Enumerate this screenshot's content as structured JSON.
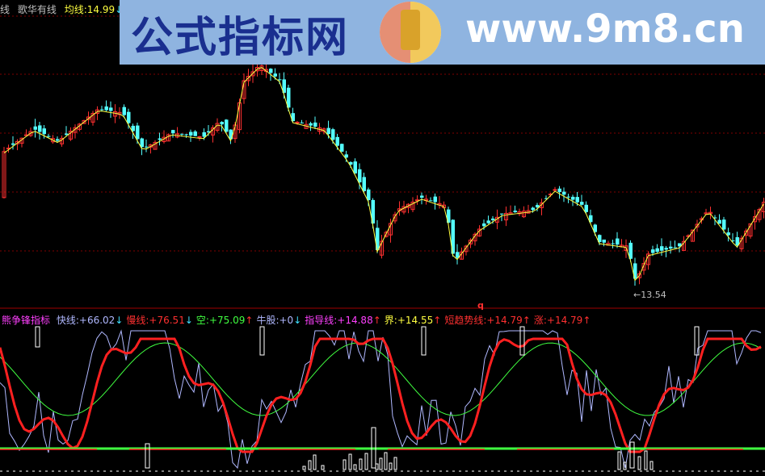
{
  "main_legend": {
    "prefix": "线",
    "name": "歌华有线",
    "ma_label": "均线:",
    "ma_value": "14.99",
    "ma_arrow": "↓"
  },
  "watermark": {
    "site_name": "公式指标网",
    "url": "www.9m8.cn",
    "logo_text": "9m8.cn"
  },
  "chart": {
    "low_label": "←13.54",
    "marker": "q"
  },
  "indicator": {
    "name": "熊争锋指标",
    "items": [
      {
        "label": "快线:",
        "value": "+66.02",
        "arrow": "↓",
        "color": "#b0b8ff",
        "arrow_color": "#40e0ff"
      },
      {
        "label": "慢线:",
        "value": "+76.51",
        "arrow": "↓",
        "color": "#ff3030",
        "arrow_color": "#40e0ff"
      },
      {
        "label": "空:",
        "value": "+75.09",
        "arrow": "↑",
        "color": "#40ff40",
        "arrow_color": "#ff3030"
      },
      {
        "label": "牛股:",
        "value": "+0",
        "arrow": "↓",
        "color": "#b0b8ff",
        "arrow_color": "#40e0ff"
      },
      {
        "label": "指导线:",
        "value": "+14.88",
        "arrow": "↑",
        "color": "#ff40ff",
        "arrow_color": "#ff3030"
      },
      {
        "label": "界:",
        "value": "+14.55",
        "arrow": "↑",
        "color": "#ffff40",
        "arrow_color": "#ff3030"
      },
      {
        "label": "短趋势线:",
        "value": "+14.79",
        "arrow": "↑",
        "color": "#ff3030",
        "arrow_color": "#ff3030"
      },
      {
        "label": "涨:",
        "value": "+14.79",
        "arrow": "↑",
        "color": "#ff3030",
        "arrow_color": "#ff3030"
      }
    ]
  },
  "colors": {
    "up": "#ff3030",
    "down": "#54ffff",
    "ma": "#ffff40",
    "fast": "#b0b8ff",
    "slow": "#ff2020",
    "mid": "#40ff40",
    "grid": "#800000"
  }
}
